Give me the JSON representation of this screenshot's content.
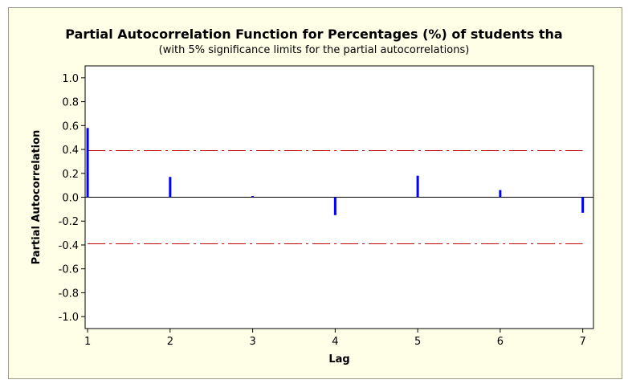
{
  "colors": {
    "outer_background": "#FFFFE8",
    "plot_background": "#FFFFFF",
    "bar": "#0000FF",
    "limit_line": "#C00000",
    "zero_line": "#000000"
  },
  "chart_data": {
    "type": "bar",
    "title": "Partial Autocorrelation Function for Percentages (%) of students tha",
    "subtitle": "(with 5% significance limits for the partial autocorrelations)",
    "xlabel": "Lag",
    "ylabel": "Partial Autocorrelation",
    "x": [
      1,
      2,
      3,
      4,
      5,
      6,
      7
    ],
    "values": [
      0.58,
      0.17,
      0.01,
      -0.15,
      0.18,
      0.06,
      -0.13
    ],
    "significance_limits": [
      0.39,
      -0.39
    ],
    "xlim": [
      0.97,
      7.13
    ],
    "ylim": [
      -1.1,
      1.1
    ],
    "yticks": [
      "1.0",
      "0.8",
      "0.6",
      "0.4",
      "0.2",
      "0.0",
      "-0.2",
      "-0.4",
      "-0.6",
      "-0.8",
      "-1.0"
    ],
    "ytick_values": [
      1.0,
      0.8,
      0.6,
      0.4,
      0.2,
      0.0,
      -0.2,
      -0.4,
      -0.6,
      -0.8,
      -1.0
    ],
    "xticks": [
      "1",
      "2",
      "3",
      "4",
      "5",
      "6",
      "7"
    ],
    "grid": false,
    "legend": "none"
  }
}
